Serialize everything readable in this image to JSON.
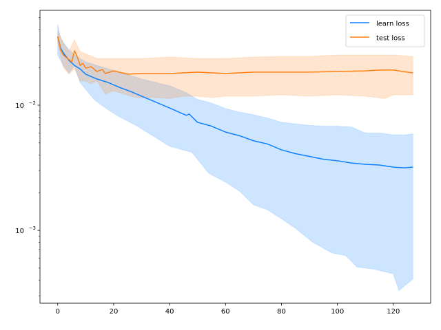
{
  "chart_data": {
    "type": "line",
    "title": "",
    "xlabel": "",
    "ylabel": "",
    "xlim": [
      -6.35,
      133.35
    ],
    "ylim": [
      0.000262,
      0.0573
    ],
    "yscale": "log",
    "grid": false,
    "legend_placement": "top-right",
    "x_ticks": [
      "0",
      "20",
      "40",
      "60",
      "80",
      "100",
      "120"
    ],
    "y_ticks": [
      {
        "base": "10",
        "exp": "−3",
        "value": 0.001
      },
      {
        "base": "10",
        "exp": "−2",
        "value": 0.01
      }
    ],
    "colors": {
      "learn": "#0a7fff",
      "test": "#ff7f0e"
    },
    "series": [
      {
        "name": "learn loss",
        "mean": [
          [
            0,
            0.0353
          ],
          [
            1,
            0.0286
          ],
          [
            2,
            0.0262
          ],
          [
            4,
            0.0228
          ],
          [
            6,
            0.0208
          ],
          [
            8,
            0.0195
          ],
          [
            10,
            0.0177
          ],
          [
            14,
            0.0162
          ],
          [
            18,
            0.0152
          ],
          [
            22,
            0.0139
          ],
          [
            26,
            0.0129
          ],
          [
            30,
            0.0118
          ],
          [
            35,
            0.0106
          ],
          [
            40,
            0.0095
          ],
          [
            46,
            0.0083
          ],
          [
            47,
            0.0085
          ],
          [
            50,
            0.0073
          ],
          [
            55,
            0.0068
          ],
          [
            60,
            0.0061
          ],
          [
            65,
            0.0057
          ],
          [
            70,
            0.0052
          ],
          [
            75,
            0.0049
          ],
          [
            80,
            0.0044
          ],
          [
            85,
            0.0041
          ],
          [
            90,
            0.0039
          ],
          [
            95,
            0.0037
          ],
          [
            100,
            0.0036
          ],
          [
            105,
            0.00345
          ],
          [
            110,
            0.00337
          ],
          [
            115,
            0.00333
          ],
          [
            120,
            0.0032
          ],
          [
            124,
            0.00316
          ],
          [
            127,
            0.0032
          ]
        ],
        "upper": [
          [
            0,
            0.0445
          ],
          [
            1,
            0.0345
          ],
          [
            2,
            0.0316
          ],
          [
            4,
            0.0279
          ],
          [
            6,
            0.0252
          ],
          [
            8,
            0.0236
          ],
          [
            10,
            0.0222
          ],
          [
            14,
            0.0208
          ],
          [
            18,
            0.0195
          ],
          [
            22,
            0.0184
          ],
          [
            26,
            0.0172
          ],
          [
            30,
            0.0162
          ],
          [
            35,
            0.0152
          ],
          [
            40,
            0.0143
          ],
          [
            46,
            0.0126
          ],
          [
            50,
            0.0111
          ],
          [
            55,
            0.0104
          ],
          [
            60,
            0.0094
          ],
          [
            65,
            0.0088
          ],
          [
            70,
            0.0084
          ],
          [
            75,
            0.0079
          ],
          [
            80,
            0.0073
          ],
          [
            85,
            0.0071
          ],
          [
            90,
            0.0069
          ],
          [
            95,
            0.0068
          ],
          [
            100,
            0.0068
          ],
          [
            105,
            0.0067
          ],
          [
            110,
            0.006
          ],
          [
            115,
            0.006
          ],
          [
            120,
            0.0058
          ],
          [
            124,
            0.0058
          ],
          [
            127,
            0.0059
          ]
        ],
        "lower": [
          [
            0,
            0.0252
          ],
          [
            2,
            0.0208
          ],
          [
            4,
            0.0181
          ],
          [
            6,
            0.0206
          ],
          [
            8,
            0.0152
          ],
          [
            10,
            0.0134
          ],
          [
            13,
            0.0111
          ],
          [
            18,
            0.0092
          ],
          [
            22,
            0.0081
          ],
          [
            28,
            0.0069
          ],
          [
            34,
            0.0057
          ],
          [
            40,
            0.0047
          ],
          [
            48,
            0.0042
          ],
          [
            54,
            0.00286
          ],
          [
            60,
            0.00243
          ],
          [
            65,
            0.00206
          ],
          [
            70,
            0.0016
          ],
          [
            75,
            0.00146
          ],
          [
            80,
            0.00124
          ],
          [
            85,
            0.00104
          ],
          [
            91,
            0.00081
          ],
          [
            98,
            0.00066
          ],
          [
            103,
            0.00063
          ],
          [
            107,
            0.00051
          ],
          [
            113,
            0.00049
          ],
          [
            120,
            0.00045
          ],
          [
            122,
            0.00033
          ],
          [
            127,
            0.00041
          ]
        ]
      },
      {
        "name": "test loss",
        "mean": [
          [
            0,
            0.0354
          ],
          [
            1,
            0.0279
          ],
          [
            2,
            0.0252
          ],
          [
            4,
            0.0231
          ],
          [
            5,
            0.0222
          ],
          [
            6,
            0.0272
          ],
          [
            7,
            0.0243
          ],
          [
            8,
            0.0208
          ],
          [
            9,
            0.0216
          ],
          [
            10,
            0.0198
          ],
          [
            12,
            0.0203
          ],
          [
            14,
            0.0186
          ],
          [
            16,
            0.0193
          ],
          [
            17,
            0.0179
          ],
          [
            20,
            0.0188
          ],
          [
            25,
            0.0177
          ],
          [
            30,
            0.0179
          ],
          [
            40,
            0.0179
          ],
          [
            50,
            0.0184
          ],
          [
            60,
            0.0179
          ],
          [
            70,
            0.0184
          ],
          [
            80,
            0.0184
          ],
          [
            90,
            0.0184
          ],
          [
            100,
            0.0186
          ],
          [
            110,
            0.0188
          ],
          [
            115,
            0.0191
          ],
          [
            120,
            0.0191
          ],
          [
            127,
            0.0181
          ]
        ],
        "upper": [
          [
            0,
            0.0392
          ],
          [
            2,
            0.0316
          ],
          [
            4,
            0.0269
          ],
          [
            6,
            0.0333
          ],
          [
            8,
            0.0269
          ],
          [
            10,
            0.0258
          ],
          [
            14,
            0.0236
          ],
          [
            20,
            0.0236
          ],
          [
            30,
            0.0236
          ],
          [
            40,
            0.0243
          ],
          [
            50,
            0.0236
          ],
          [
            60,
            0.0236
          ],
          [
            70,
            0.0243
          ],
          [
            80,
            0.0245
          ],
          [
            90,
            0.0245
          ],
          [
            100,
            0.0252
          ],
          [
            110,
            0.0252
          ],
          [
            120,
            0.0252
          ],
          [
            127,
            0.0245
          ]
        ],
        "lower": [
          [
            0,
            0.0316
          ],
          [
            1,
            0.0245
          ],
          [
            2,
            0.02
          ],
          [
            4,
            0.0177
          ],
          [
            6,
            0.0195
          ],
          [
            8,
            0.0156
          ],
          [
            10,
            0.0156
          ],
          [
            12,
            0.0148
          ],
          [
            14,
            0.0156
          ],
          [
            17,
            0.0123
          ],
          [
            20,
            0.013
          ],
          [
            28,
            0.0115
          ],
          [
            35,
            0.0115
          ],
          [
            40,
            0.0113
          ],
          [
            45,
            0.0118
          ],
          [
            50,
            0.0118
          ],
          [
            55,
            0.0115
          ],
          [
            60,
            0.0118
          ],
          [
            70,
            0.0118
          ],
          [
            80,
            0.0121
          ],
          [
            90,
            0.0118
          ],
          [
            100,
            0.0121
          ],
          [
            110,
            0.0118
          ],
          [
            117,
            0.0113
          ],
          [
            120,
            0.0121
          ],
          [
            127,
            0.0121
          ]
        ]
      }
    ]
  }
}
